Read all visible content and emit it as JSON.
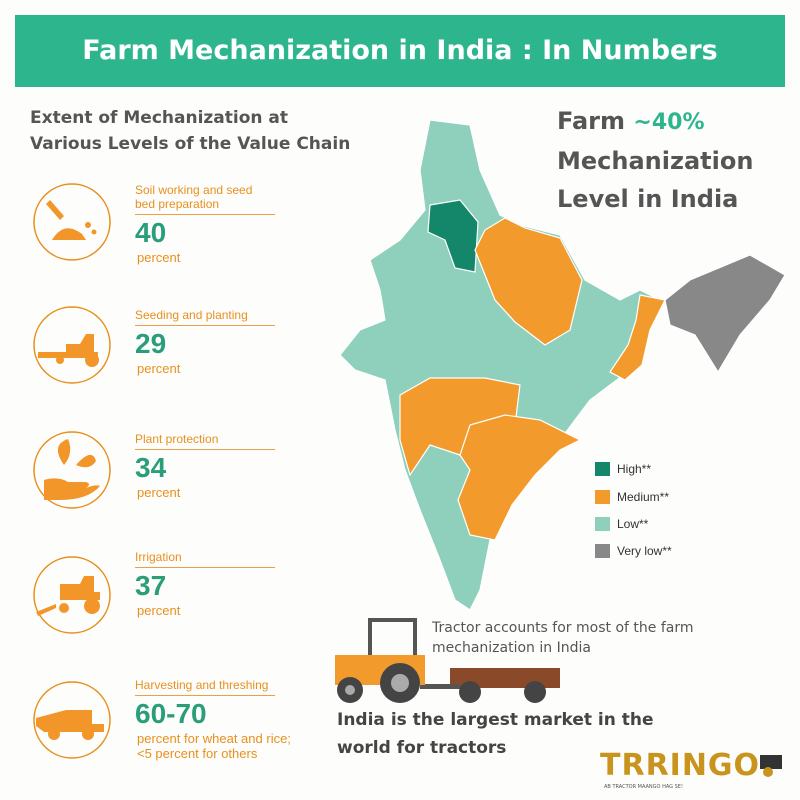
{
  "header": {
    "title": "Farm Mechanization in India : In Numbers"
  },
  "section": {
    "title_lines": [
      "Extent of Mechanization at",
      "Various Levels of the Value Chain"
    ]
  },
  "stages": [
    {
      "label_lines": [
        "Soil working and seed",
        "bed preparation"
      ],
      "value": "40",
      "unit_lines": [
        "percent"
      ]
    },
    {
      "label_lines": [
        "Seeding and planting"
      ],
      "value": "29",
      "unit_lines": [
        "percent"
      ]
    },
    {
      "label_lines": [
        "Plant protection"
      ],
      "value": "34",
      "unit_lines": [
        "percent"
      ]
    },
    {
      "label_lines": [
        "Irrigation"
      ],
      "value": "37",
      "unit_lines": [
        "percent"
      ]
    },
    {
      "label_lines": [
        "Harvesting and threshing"
      ],
      "value": "60-70",
      "unit_lines": [
        "percent for wheat and rice;",
        "<5 percent for others"
      ]
    }
  ],
  "headline": {
    "prefix": "Farm",
    "value": "~40%",
    "lines": [
      "Mechanization",
      "Level in India"
    ]
  },
  "legend": [
    "High**",
    "Medium**",
    "Low**",
    "Very low**"
  ],
  "tractor_note": {
    "lines": [
      "Tractor accounts for most of the farm",
      "mechanization in India"
    ]
  },
  "market_note": {
    "lines": [
      "India is the largest market in the",
      "world for tractors"
    ]
  },
  "logo": {
    "name": "TRRINGO",
    "tagline": "AB TRACTOR MAANGO HAG SE!"
  }
}
